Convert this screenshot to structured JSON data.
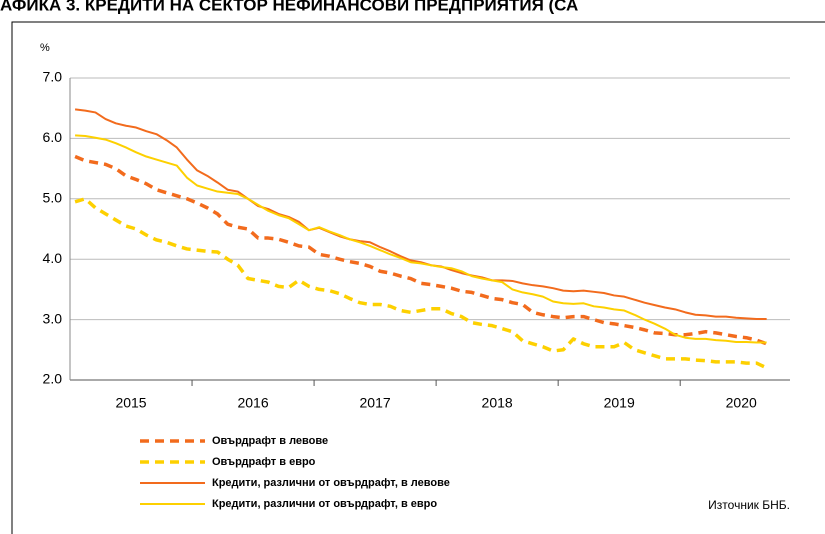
{
  "chart_data": {
    "type": "line",
    "title": "АФИКА 3. КРЕДИТИ НА СЕКТОР НЕФИНАНСОВИ ПРЕДПРИЯТИЯ (СА",
    "y_label": "%",
    "source": "Източник БНБ.",
    "ylim": [
      2,
      7
    ],
    "yticks": [
      {
        "value": 2,
        "label": "2.0"
      },
      {
        "value": 3,
        "label": "3.0"
      },
      {
        "value": 4,
        "label": "4.0"
      },
      {
        "value": 5,
        "label": "5.0"
      },
      {
        "value": 6,
        "label": "6.0"
      },
      {
        "value": 7,
        "label": "7.0"
      }
    ],
    "grid": true,
    "categories": [
      null,
      null,
      null,
      null,
      null,
      "2015",
      null,
      null,
      null,
      null,
      null,
      null,
      null,
      null,
      null,
      null,
      null,
      "2016",
      null,
      null,
      null,
      null,
      null,
      null,
      null,
      null,
      null,
      null,
      null,
      "2017",
      null,
      null,
      null,
      null,
      null,
      null,
      null,
      null,
      null,
      null,
      null,
      "2018",
      null,
      null,
      null,
      null,
      null,
      null,
      null,
      null,
      null,
      null,
      null,
      "2019",
      null,
      null,
      null,
      null,
      null,
      null,
      null,
      null,
      null,
      null,
      null,
      "2020",
      null,
      null,
      null
    ],
    "series": [
      {
        "name": "Овърдрафт в левове",
        "color": "#f26b1d",
        "dashed": true,
        "values": [
          5.7,
          5.63,
          5.6,
          5.57,
          5.5,
          5.38,
          5.32,
          5.25,
          5.15,
          5.1,
          5.05,
          5.0,
          4.93,
          4.85,
          4.75,
          4.58,
          4.53,
          4.5,
          4.35,
          4.35,
          4.33,
          4.28,
          4.22,
          4.2,
          4.08,
          4.05,
          4.0,
          3.96,
          3.93,
          3.88,
          3.8,
          3.77,
          3.72,
          3.68,
          3.6,
          3.58,
          3.55,
          3.52,
          3.47,
          3.45,
          3.4,
          3.35,
          3.33,
          3.28,
          3.25,
          3.12,
          3.08,
          3.05,
          3.03,
          3.05,
          3.05,
          3.0,
          2.95,
          2.93,
          2.9,
          2.87,
          2.83,
          2.78,
          2.77,
          2.75,
          2.75,
          2.77,
          2.8,
          2.78,
          2.75,
          2.72,
          2.7,
          2.66,
          2.6
        ]
      },
      {
        "name": "Овърдрафт в евро",
        "color": "#fdd000",
        "dashed": true,
        "values": [
          4.95,
          5.0,
          4.85,
          4.75,
          4.65,
          4.55,
          4.5,
          4.4,
          4.32,
          4.28,
          4.22,
          4.17,
          4.15,
          4.13,
          4.12,
          4.0,
          3.9,
          3.68,
          3.65,
          3.62,
          3.55,
          3.53,
          3.65,
          3.55,
          3.5,
          3.48,
          3.43,
          3.35,
          3.28,
          3.25,
          3.25,
          3.22,
          3.15,
          3.12,
          3.15,
          3.18,
          3.18,
          3.1,
          3.05,
          2.95,
          2.92,
          2.9,
          2.85,
          2.8,
          2.65,
          2.6,
          2.55,
          2.48,
          2.5,
          2.68,
          2.6,
          2.55,
          2.55,
          2.55,
          2.62,
          2.5,
          2.45,
          2.4,
          2.35,
          2.35,
          2.35,
          2.33,
          2.32,
          2.3,
          2.3,
          2.3,
          2.28,
          2.28,
          2.2
        ]
      },
      {
        "name": "Кредити, различни от овърдрафт, в левове",
        "color": "#f26b1d",
        "dashed": false,
        "values": [
          6.48,
          6.46,
          6.43,
          6.32,
          6.25,
          6.21,
          6.18,
          6.12,
          6.07,
          5.97,
          5.85,
          5.65,
          5.47,
          5.38,
          5.27,
          5.15,
          5.12,
          5.0,
          4.88,
          4.83,
          4.75,
          4.7,
          4.62,
          4.48,
          4.52,
          4.45,
          4.38,
          4.33,
          4.3,
          4.28,
          4.2,
          4.13,
          4.05,
          3.98,
          3.95,
          3.9,
          3.88,
          3.82,
          3.77,
          3.73,
          3.7,
          3.65,
          3.65,
          3.64,
          3.6,
          3.57,
          3.55,
          3.52,
          3.48,
          3.47,
          3.48,
          3.46,
          3.44,
          3.4,
          3.38,
          3.33,
          3.28,
          3.24,
          3.2,
          3.17,
          3.12,
          3.08,
          3.07,
          3.05,
          3.05,
          3.03,
          3.02,
          3.01,
          3.01
        ]
      },
      {
        "name": "Кредити, различни от овърдрафт, в евро",
        "color": "#fdd000",
        "dashed": false,
        "values": [
          6.05,
          6.04,
          6.01,
          5.98,
          5.92,
          5.85,
          5.77,
          5.7,
          5.65,
          5.6,
          5.55,
          5.35,
          5.22,
          5.17,
          5.12,
          5.1,
          5.08,
          5.0,
          4.9,
          4.8,
          4.73,
          4.68,
          4.58,
          4.48,
          4.53,
          4.46,
          4.4,
          4.33,
          4.28,
          4.22,
          4.15,
          4.08,
          4.02,
          3.95,
          3.93,
          3.9,
          3.87,
          3.85,
          3.8,
          3.72,
          3.68,
          3.65,
          3.62,
          3.5,
          3.45,
          3.42,
          3.38,
          3.3,
          3.27,
          3.26,
          3.27,
          3.22,
          3.2,
          3.17,
          3.15,
          3.08,
          3.0,
          2.93,
          2.85,
          2.75,
          2.7,
          2.68,
          2.68,
          2.66,
          2.65,
          2.63,
          2.63,
          2.62,
          2.62
        ]
      }
    ]
  }
}
